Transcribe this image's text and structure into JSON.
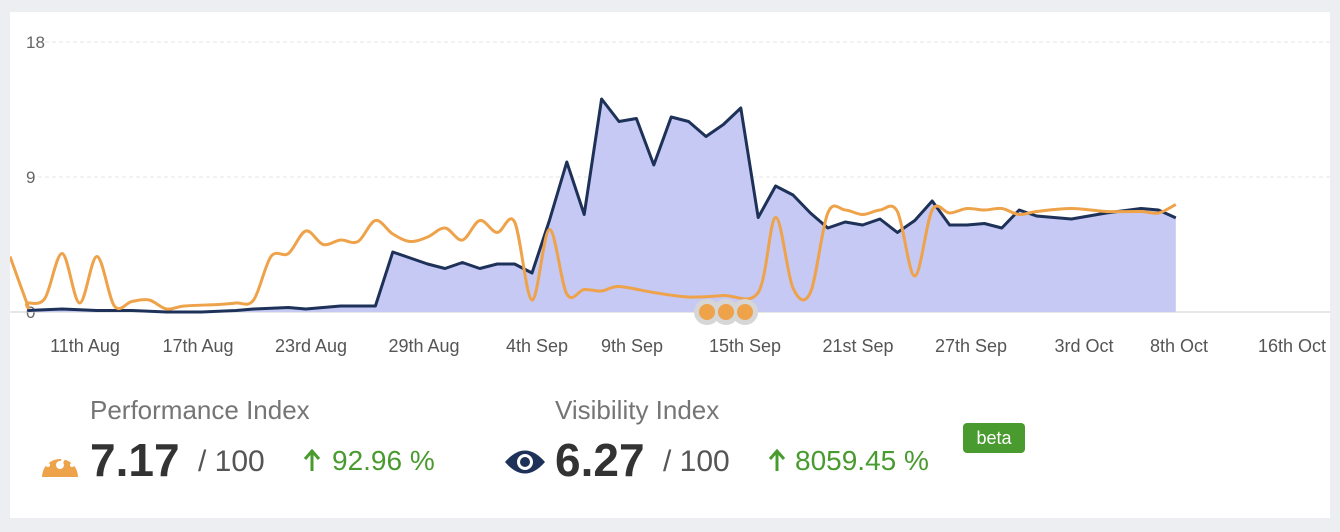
{
  "chart_data": {
    "type": "area",
    "y_ticks": [
      "18",
      "9",
      "0"
    ],
    "ylim": [
      0,
      18
    ],
    "x_tick_labels": [
      "11th Aug",
      "17th Aug",
      "23rd Aug",
      "29th Aug",
      "4th Sep",
      "9th Sep",
      "15th Sep",
      "21st Sep",
      "27th Sep",
      "3rd Oct",
      "8th Oct",
      "16th Oct"
    ],
    "grid": true,
    "colors": {
      "area_fill": "#c5c9f4",
      "visibility_line": "#1e3158",
      "performance_line": "#eea24a",
      "grid": "#e4e4e4"
    },
    "series": [
      {
        "key": "visibility",
        "x": [
          "2023-08-11",
          "2023-08-13",
          "2023-08-15",
          "2023-08-17",
          "2023-08-19",
          "2023-08-21",
          "2023-08-23",
          "2023-08-24",
          "2023-08-26",
          "2023-08-27",
          "2023-08-29",
          "2023-08-30",
          "2023-08-31",
          "2023-09-01",
          "2023-09-02",
          "2023-09-03",
          "2023-09-04",
          "2023-09-05",
          "2023-09-06",
          "2023-09-07",
          "2023-09-08",
          "2023-09-09",
          "2023-09-10",
          "2023-09-11",
          "2023-09-12",
          "2023-09-13",
          "2023-09-14",
          "2023-09-15",
          "2023-09-16",
          "2023-09-17",
          "2023-09-18",
          "2023-09-19",
          "2023-09-20",
          "2023-09-21",
          "2023-09-22",
          "2023-09-23",
          "2023-09-24",
          "2023-09-25",
          "2023-09-26",
          "2023-09-27",
          "2023-09-28",
          "2023-09-29",
          "2023-09-30",
          "2023-10-01",
          "2023-10-02",
          "2023-10-03",
          "2023-10-04",
          "2023-10-05",
          "2023-10-06",
          "2023-10-07",
          "2023-10-08",
          "2023-10-09",
          "2023-10-10",
          "2023-10-12",
          "2023-10-14",
          "2023-10-15",
          "2023-10-16"
        ],
        "values": [
          0.1,
          0.2,
          0.1,
          0.1,
          0.0,
          0.0,
          0.1,
          0.2,
          0.3,
          0.2,
          0.4,
          0.4,
          0.4,
          4.0,
          3.6,
          3.2,
          2.9,
          3.3,
          2.9,
          3.2,
          3.2,
          2.6,
          6.1,
          10.0,
          6.5,
          14.2,
          12.7,
          12.9,
          9.8,
          13.0,
          12.7,
          11.7,
          12.5,
          13.6,
          6.3,
          8.4,
          7.8,
          6.6,
          5.6,
          6.0,
          5.8,
          6.2,
          5.3,
          6.1,
          7.4,
          5.8,
          5.8,
          5.9,
          5.6,
          6.8,
          6.4,
          6.3,
          6.2,
          6.6,
          6.9,
          6.8,
          6.27
        ]
      },
      {
        "key": "performance",
        "x": [
          "2023-08-10",
          "2023-08-11",
          "2023-08-11",
          "2023-08-12",
          "2023-08-13",
          "2023-08-14",
          "2023-08-15",
          "2023-08-16",
          "2023-08-17",
          "2023-08-18",
          "2023-08-19",
          "2023-08-20",
          "2023-08-22",
          "2023-08-23",
          "2023-08-24",
          "2023-08-25",
          "2023-08-26",
          "2023-08-27",
          "2023-08-28",
          "2023-08-29",
          "2023-08-30",
          "2023-08-31",
          "2023-09-01",
          "2023-09-02",
          "2023-09-03",
          "2023-09-04",
          "2023-09-05",
          "2023-09-06",
          "2023-09-07",
          "2023-09-08",
          "2023-09-09",
          "2023-09-10",
          "2023-09-11",
          "2023-09-12",
          "2023-09-13",
          "2023-09-14",
          "2023-09-16",
          "2023-09-18",
          "2023-09-20",
          "2023-09-22",
          "2023-09-23",
          "2023-09-24",
          "2023-09-25",
          "2023-09-26",
          "2023-09-27",
          "2023-09-28",
          "2023-09-29",
          "2023-09-30",
          "2023-10-01",
          "2023-10-02",
          "2023-10-03",
          "2023-10-04",
          "2023-10-05",
          "2023-10-06",
          "2023-10-07",
          "2023-10-08",
          "2023-10-10",
          "2023-10-12",
          "2023-10-14",
          "2023-10-15",
          "2023-10-16"
        ],
        "values": [
          3.7,
          0.5,
          0.6,
          0.9,
          3.9,
          0.6,
          3.7,
          0.4,
          0.7,
          0.8,
          0.2,
          0.4,
          0.5,
          0.6,
          0.8,
          3.7,
          3.9,
          5.4,
          4.5,
          4.8,
          4.7,
          6.1,
          5.2,
          4.7,
          5.0,
          5.6,
          4.8,
          6.1,
          5.3,
          6.0,
          0.8,
          5.5,
          1.2,
          1.5,
          1.4,
          1.7,
          1.3,
          1.0,
          1.1,
          1.3,
          6.3,
          1.6,
          1.3,
          6.6,
          6.8,
          6.5,
          6.8,
          6.7,
          2.4,
          6.8,
          6.6,
          6.9,
          6.8,
          6.9,
          6.5,
          6.7,
          6.9,
          6.7,
          6.7,
          6.6,
          7.17
        ]
      }
    ],
    "annotation_markers": 3
  },
  "metrics": {
    "performance": {
      "label": "Performance Index",
      "value": "7.17",
      "of": "/ 100",
      "delta": "92.96 %",
      "icon": "gauge-icon"
    },
    "visibility": {
      "label": "Visibility Index",
      "value": "6.27",
      "of": "/ 100",
      "delta": "8059.45 %",
      "icon": "eye-icon",
      "badge": "beta"
    }
  }
}
